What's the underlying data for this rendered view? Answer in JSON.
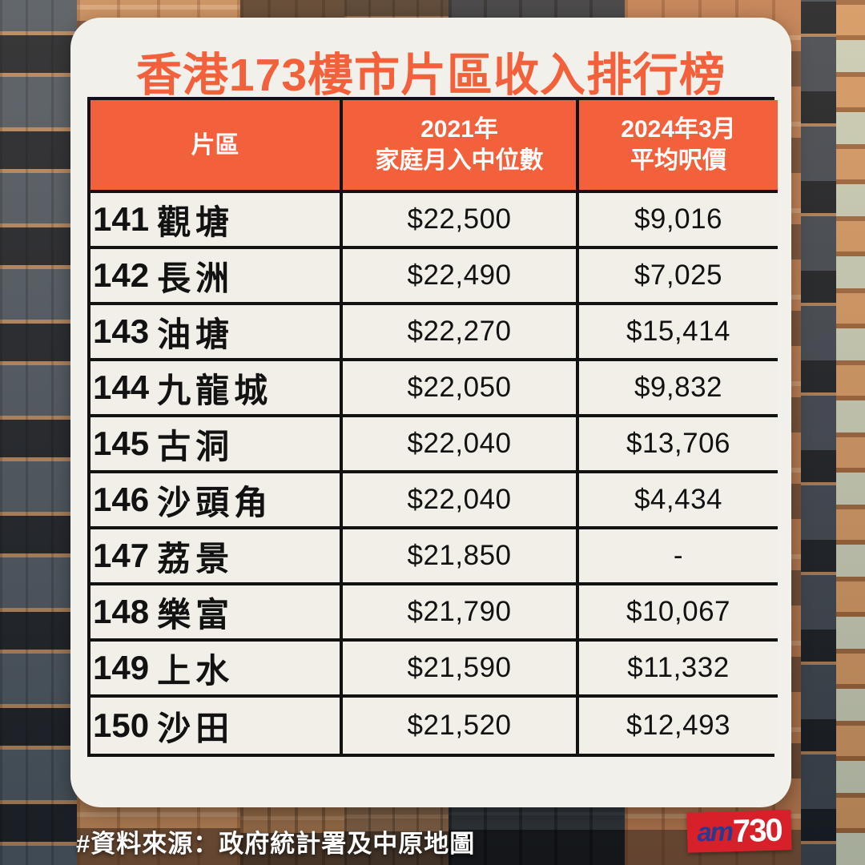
{
  "title": "香港173樓市片區收入排行榜",
  "table": {
    "headers": {
      "district": "片區",
      "income_line1": "2021年",
      "income_line2": "家庭月入中位數",
      "price_line1": "2024年3月",
      "price_line2": "平均呎價"
    },
    "rows": [
      {
        "rank": "141",
        "name": "觀塘",
        "income": "$22,500",
        "price": "$9,016"
      },
      {
        "rank": "142",
        "name": "長洲",
        "income": "$22,490",
        "price": "$7,025"
      },
      {
        "rank": "143",
        "name": "油塘",
        "income": "$22,270",
        "price": "$15,414"
      },
      {
        "rank": "144",
        "name": "九龍城",
        "income": "$22,050",
        "price": "$9,832"
      },
      {
        "rank": "145",
        "name": "古洞",
        "income": "$22,040",
        "price": "$13,706"
      },
      {
        "rank": "146",
        "name": "沙頭角",
        "income": "$22,040",
        "price": "$4,434"
      },
      {
        "rank": "147",
        "name": "荔景",
        "income": "$21,850",
        "price": "-"
      },
      {
        "rank": "148",
        "name": "樂富",
        "income": "$21,790",
        "price": "$10,067"
      },
      {
        "rank": "149",
        "name": "上水",
        "income": "$21,590",
        "price": "$11,332"
      },
      {
        "rank": "150",
        "name": "沙田",
        "income": "$21,520",
        "price": "$12,493"
      }
    ]
  },
  "footer": {
    "source": "#資料來源：政府統計署及中原地圖"
  },
  "logo": {
    "part1": "am",
    "part2": "730"
  },
  "colors": {
    "accent_orange": "#F2613B",
    "card_background": "#F2F0EA",
    "table_border": "#121212",
    "logo_red": "#D7202A",
    "logo_blue": "#283A8F"
  }
}
